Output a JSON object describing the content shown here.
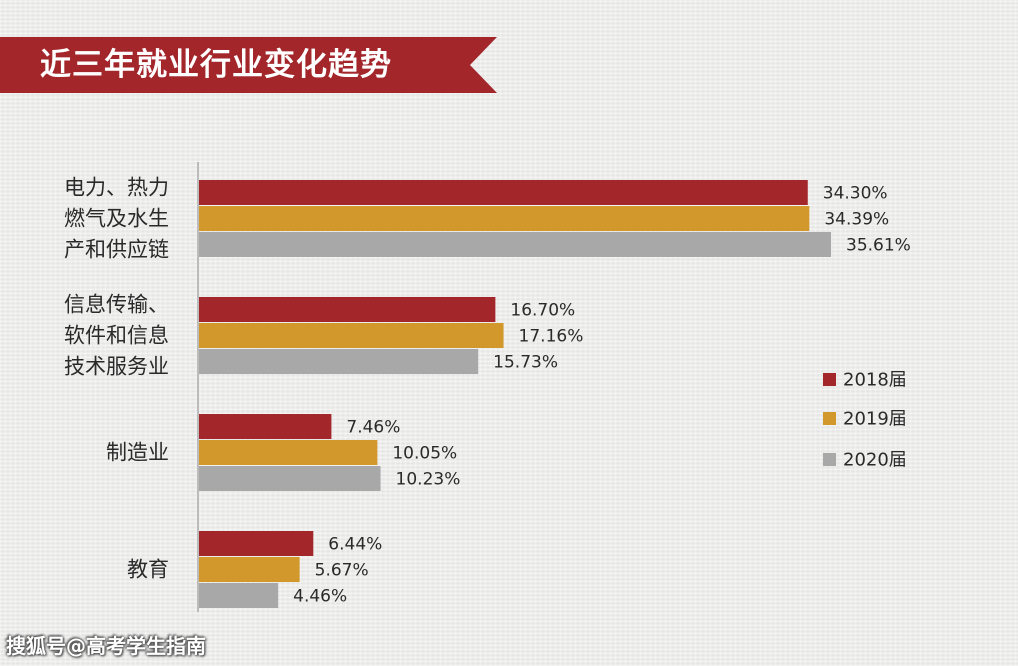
{
  "title": "近三年就业行业变化趋势",
  "watermark": "搜狐号@高考学生指南",
  "chart_data": {
    "type": "bar",
    "orientation": "horizontal",
    "categories": [
      [
        "电力、热力",
        "燃气及水生",
        "产和供应链"
      ],
      [
        "信息传输、",
        "软件和信息",
        "技术服务业"
      ],
      [
        "制造业"
      ],
      [
        "教育"
      ]
    ],
    "series": [
      {
        "name": "2018届",
        "color": "#a3262b",
        "values": [
          34.3,
          16.7,
          7.46,
          6.44
        ]
      },
      {
        "name": "2019届",
        "color": "#d2982c",
        "values": [
          34.39,
          17.16,
          10.05,
          5.67
        ]
      },
      {
        "name": "2020届",
        "color": "#a8a8a8",
        "values": [
          35.61,
          15.73,
          10.23,
          4.46
        ]
      }
    ],
    "value_labels": [
      [
        "34.30%",
        "16.70%",
        "7.46%",
        "6.44%"
      ],
      [
        "34.39%",
        "17.16%",
        "10.05%",
        "5.67%"
      ],
      [
        "35.61%",
        "15.73%",
        "10.23%",
        "4.46%"
      ]
    ],
    "xlim": [
      0,
      35.61
    ],
    "grid": false,
    "legend_position": "right"
  }
}
